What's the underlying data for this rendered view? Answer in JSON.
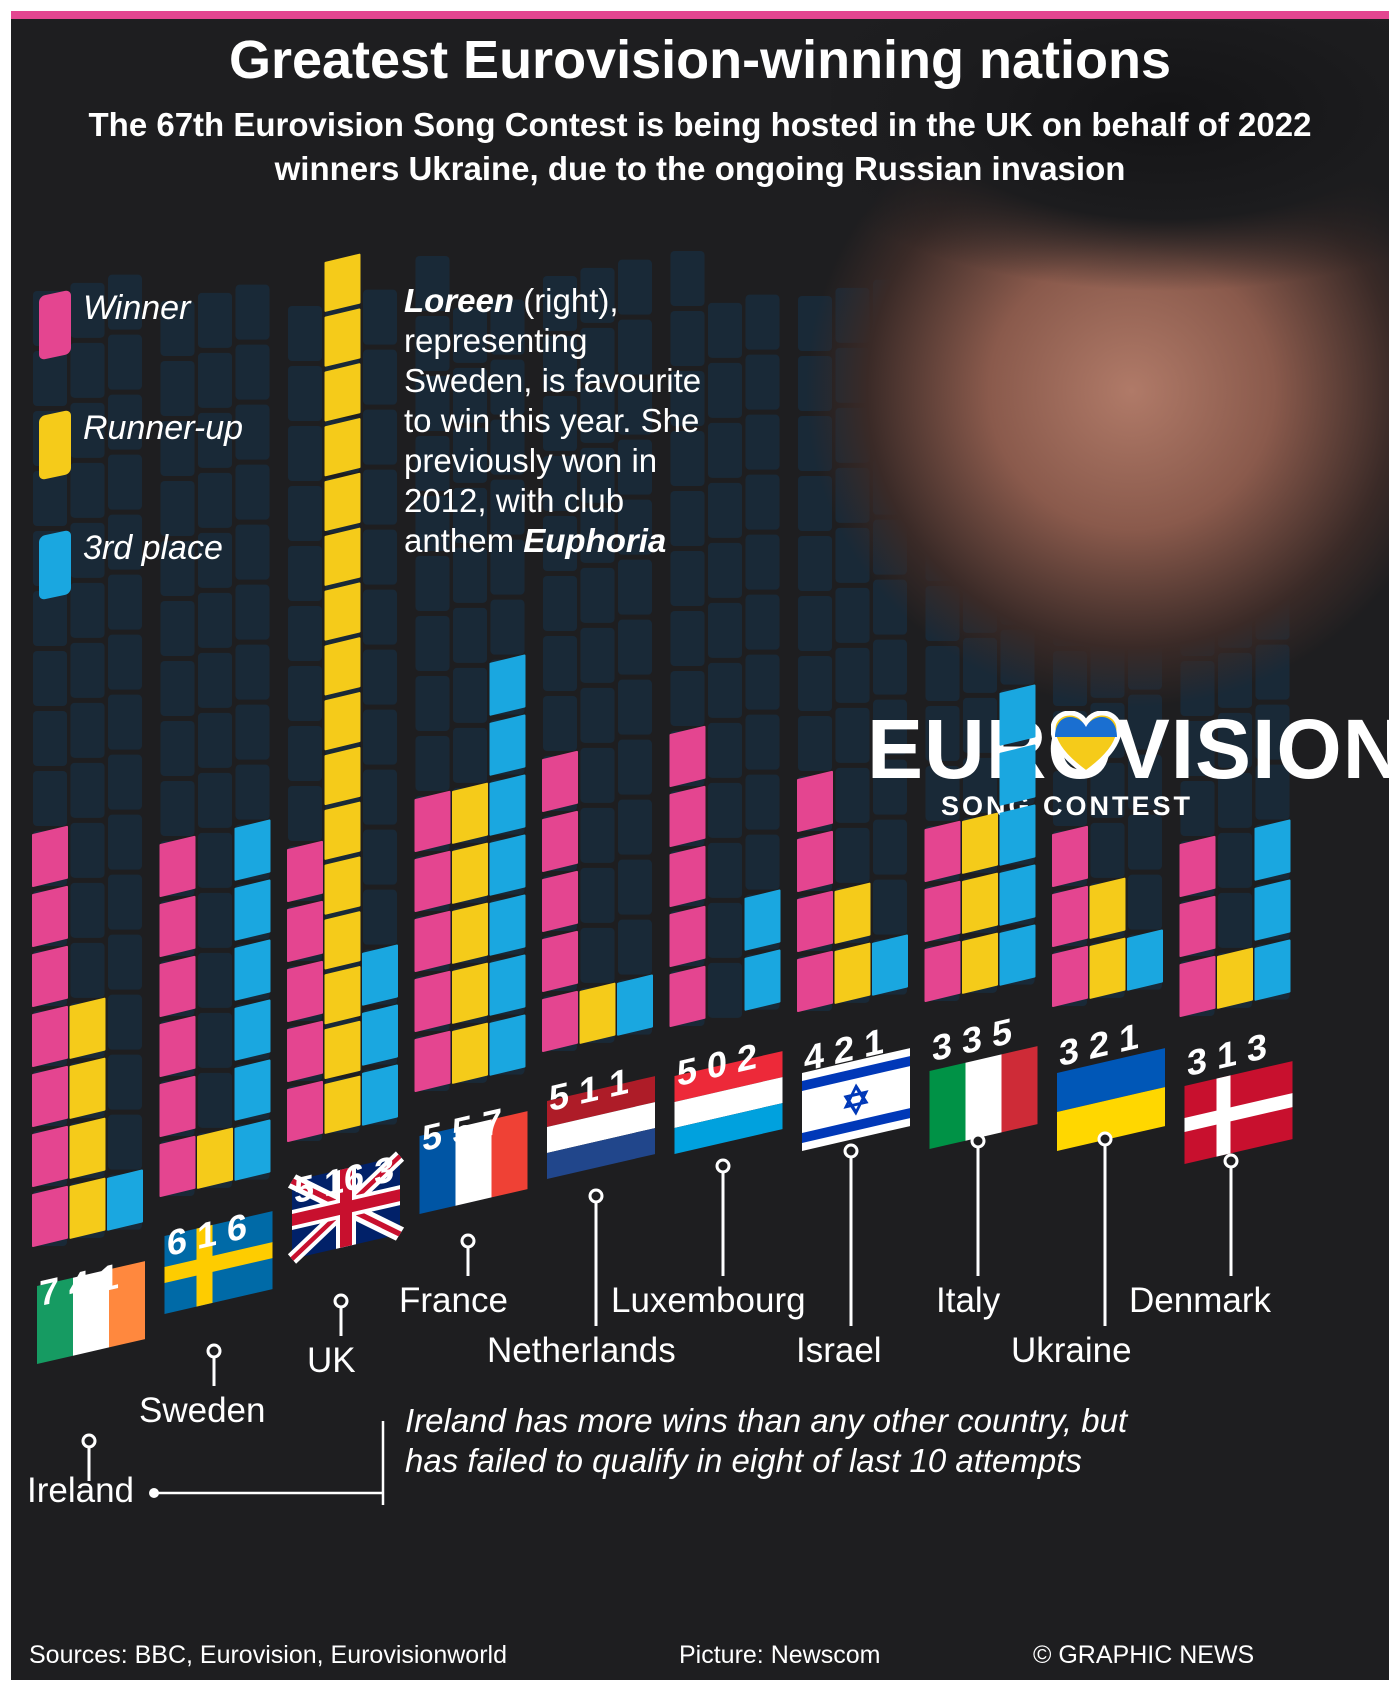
{
  "title": "Greatest Eurovision-winning nations",
  "subtitle": "The 67th Eurovision Song Contest is being hosted in the UK on behalf of 2022 winners Ukraine, due to the ongoing Russian invasion",
  "colors": {
    "winner": "#e44590",
    "runner_up": "#f5cb1a",
    "third": "#1aa7e0",
    "background": "#1e1e20",
    "grid_cell": "#16334a"
  },
  "legend": {
    "winner": "Winner",
    "runner_up": "Runner-up",
    "third": "3rd place"
  },
  "note": {
    "name": "Loreen",
    "rest": " (right), representing Sweden, is favourite to win this year. She previously won in 2012, with club anthem ",
    "song": "Euphoria"
  },
  "logo": {
    "main": "EUROVISION",
    "sub": "SONG CONTEST",
    "heart_icon": "ukraine-heart-icon"
  },
  "footnote": "Ireland has more wins than any other country, but has failed to qualify in eight of last 10 attempts",
  "sources": "Sources: BBC, Eurovision, Eurovisionworld",
  "picture_credit": "Picture: Newscom",
  "copyright": "© GRAPHIC NEWS",
  "chart_data": {
    "type": "bar",
    "categories": [
      "Ireland",
      "Sweden",
      "UK",
      "France",
      "Netherlands",
      "Luxembourg",
      "Israel",
      "Italy",
      "Ukraine",
      "Denmark"
    ],
    "series": [
      {
        "name": "Winner",
        "values": [
          7,
          6,
          5,
          5,
          5,
          5,
          4,
          3,
          3,
          3
        ]
      },
      {
        "name": "Runner-up",
        "values": [
          4,
          1,
          16,
          5,
          1,
          0,
          2,
          3,
          2,
          1
        ]
      },
      {
        "name": "3rd place",
        "values": [
          1,
          6,
          3,
          7,
          1,
          2,
          1,
          5,
          1,
          3
        ]
      }
    ],
    "count_labels": [
      "7 4 1",
      "6 1 6",
      "5 16 3",
      "5 5 7",
      "5 1 1",
      "5 0 2",
      "4 2 1",
      "3 3 5",
      "3 2 1",
      "3 1 3"
    ],
    "flag_icons": [
      "ireland-flag-icon",
      "sweden-flag-icon",
      "uk-flag-icon",
      "france-flag-icon",
      "netherlands-flag-icon",
      "luxembourg-flag-icon",
      "israel-flag-icon",
      "italy-flag-icon",
      "ukraine-flag-icon",
      "denmark-flag-icon"
    ]
  }
}
